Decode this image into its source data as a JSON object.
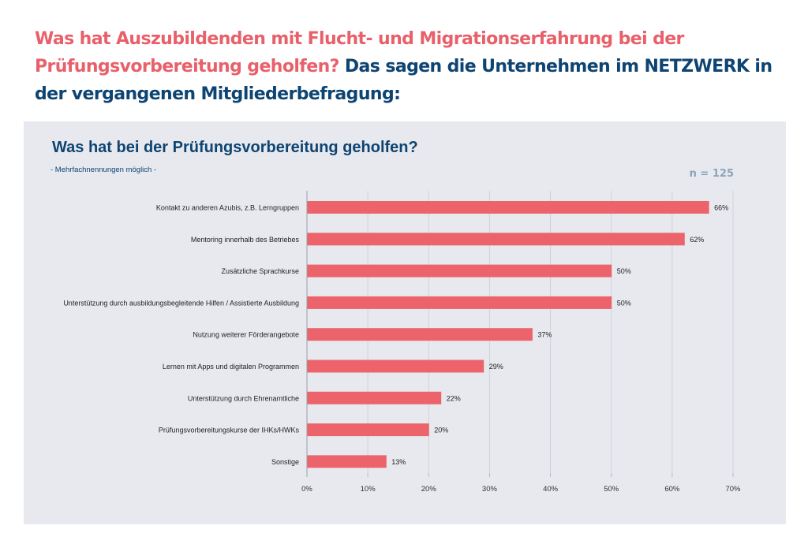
{
  "headline": {
    "accent_text": "Was hat Auszubildenden mit Flucht- und Migrationserfahrung bei der Prüfungsvorbereitung geholfen?",
    "dark_text": " Das sagen die Unternehmen im NETZWERK in der vergangenen Mitgliederbefragung:"
  },
  "colors": {
    "accent": "#e8606a",
    "dark_blue": "#0e4472",
    "bar": "#ec636b",
    "panel_bg": "#e7e9ee",
    "n_label": "#8aa4bd"
  },
  "chart_data": {
    "type": "bar",
    "orientation": "horizontal",
    "title": "Was hat bei der Prüfungsvorbereitung geholfen?",
    "subtitle": "- Mehrfachnennungen möglich -",
    "sample_size_label": "n = 125",
    "xlabel": "",
    "ylabel": "",
    "xlim": [
      0,
      70
    ],
    "x_ticks": [
      0,
      10,
      20,
      30,
      40,
      50,
      60,
      70
    ],
    "x_tick_labels": [
      "0%",
      "10%",
      "20%",
      "30%",
      "40%",
      "50%",
      "60%",
      "70%"
    ],
    "grid": true,
    "legend": "none",
    "categories": [
      "Kontakt zu anderen Azubis, z.B. Lerngruppen",
      "Mentoring innerhalb des Betriebes",
      "Zusätzliche Sprachkurse",
      "Unterstützung durch ausbildungsbegleitende Hilfen / Assistierte Ausbildung",
      "Nutzung weiterer Förderangebote",
      "Lernen mit Apps und digitalen Programmen",
      "Unterstützung durch Ehrenamtliche",
      "Prüfungsvorbereitungskurse der IHKs/HWKs",
      "Sonstige"
    ],
    "values": [
      66,
      62,
      50,
      50,
      37,
      29,
      22,
      20,
      13
    ],
    "value_labels": [
      "66%",
      "62%",
      "50%",
      "50%",
      "37%",
      "29%",
      "22%",
      "20%",
      "13%"
    ]
  }
}
